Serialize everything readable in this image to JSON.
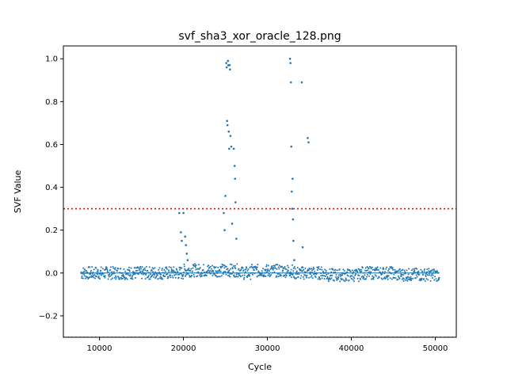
{
  "chart_data": {
    "type": "scatter",
    "title": "svf_sha3_xor_oracle_128.png",
    "xlabel": "Cycle",
    "ylabel": "SVF Value",
    "xlim": [
      5700,
      52500
    ],
    "ylim": [
      -0.3,
      1.06
    ],
    "xticks": [
      10000,
      20000,
      30000,
      40000,
      50000
    ],
    "xtick_labels": [
      "10000",
      "20000",
      "30000",
      "40000",
      "50000"
    ],
    "yticks": [
      -0.2,
      0.0,
      0.2,
      0.4,
      0.6,
      0.8,
      1.0
    ],
    "ytick_labels": [
      "−0.2",
      "0.0",
      "0.2",
      "0.4",
      "0.6",
      "0.8",
      "1.0"
    ],
    "grid": false,
    "marker_color": "#1f77b4",
    "threshold_color": "#ff0000",
    "thresholds": [
      0.3,
      -0.3
    ],
    "series": [
      {
        "x": [
          19500,
          19700,
          19800,
          20000,
          20200,
          20300,
          20400,
          20500,
          24800,
          24900,
          25000,
          25100,
          25150,
          25200,
          25250,
          25300,
          25350,
          25400,
          25450,
          25500,
          25550,
          25600,
          25700,
          25800,
          26000,
          26100,
          26150,
          26200,
          26300,
          32700,
          32750,
          32800,
          32850,
          32900,
          32950,
          33000,
          33050,
          33100,
          33200,
          34100,
          34200,
          34800,
          34900
        ],
        "y": [
          0.28,
          0.19,
          0.15,
          0.28,
          0.17,
          0.13,
          0.09,
          0.06,
          0.28,
          0.2,
          0.36,
          0.98,
          0.96,
          0.71,
          0.69,
          0.99,
          0.97,
          0.66,
          0.58,
          0.97,
          0.95,
          0.64,
          0.59,
          0.23,
          0.58,
          0.5,
          0.44,
          0.33,
          0.16,
          1.0,
          0.98,
          0.89,
          0.59,
          0.38,
          0.3,
          0.44,
          0.25,
          0.15,
          0.06,
          0.89,
          0.12,
          0.63,
          0.61
        ]
      }
    ],
    "noise_band": {
      "x_start": 7800,
      "x_end": 50500,
      "y_center": 0.0,
      "y_spread": 0.03
    }
  }
}
